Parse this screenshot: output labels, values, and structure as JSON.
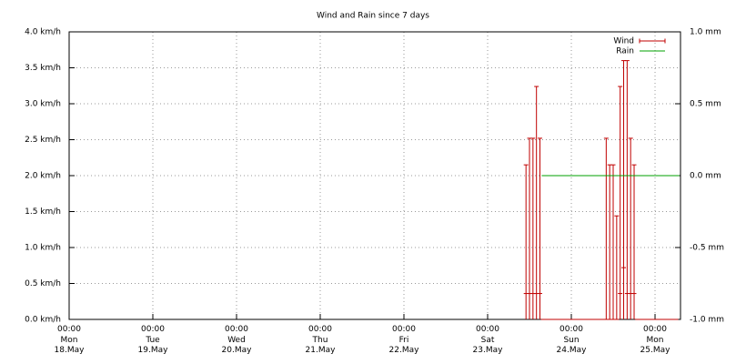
{
  "chart_data": {
    "type": "errorbar",
    "title": "Wind and Rain since 7 days",
    "xlim": [
      0,
      175.3
    ],
    "xticks": [
      {
        "value": 0,
        "label": "00:00\nMon\n18.May"
      },
      {
        "value": 24,
        "label": "00:00\nTue\n19.May"
      },
      {
        "value": 48,
        "label": "00:00\nWed\n20.May"
      },
      {
        "value": 72,
        "label": "00:00\nThu\n21.May"
      },
      {
        "value": 96,
        "label": "00:00\nFri\n22.May"
      },
      {
        "value": 120,
        "label": "00:00\nSat\n23.May"
      },
      {
        "value": 144,
        "label": "00:00\nSun\n24.May"
      },
      {
        "value": 168,
        "label": "00:00\nMon\n25.May"
      }
    ],
    "ylim": [
      0,
      4
    ],
    "yticks": [
      {
        "value": 0,
        "label": "0.0 km/h"
      },
      {
        "value": 0.5,
        "label": "0.5 km/h"
      },
      {
        "value": 1,
        "label": "1.0 km/h"
      },
      {
        "value": 1.5,
        "label": "1.5 km/h"
      },
      {
        "value": 2,
        "label": "2.0 km/h"
      },
      {
        "value": 2.5,
        "label": "2.5 km/h"
      },
      {
        "value": 3,
        "label": "3.0 km/h"
      },
      {
        "value": 3.5,
        "label": "3.5 km/h"
      },
      {
        "value": 4,
        "label": "4.0 km/h"
      }
    ],
    "y2lim": [
      -1,
      1
    ],
    "y2ticks": [
      {
        "value": -1,
        "label": "-1.0 mm"
      },
      {
        "value": -0.5,
        "label": "-0.5 mm"
      },
      {
        "value": 0,
        "label": "0.0 mm"
      },
      {
        "value": 0.5,
        "label": "0.5 mm"
      },
      {
        "value": 1,
        "label": "1.0 mm"
      }
    ],
    "grid": true,
    "legend": "top-right",
    "series": [
      {
        "name": "Wind",
        "color": "#c00000",
        "x": [
          131,
          132,
          133,
          134,
          135,
          136,
          137,
          138,
          139,
          140,
          141,
          142,
          143,
          144,
          145,
          146,
          147,
          148,
          149,
          150,
          151,
          152,
          153,
          154,
          155,
          156,
          157,
          158,
          159,
          160,
          161,
          162,
          163,
          164,
          165,
          166,
          167,
          168,
          169,
          170,
          171,
          172,
          173,
          174
        ],
        "values": [
          2.15,
          2.52,
          2.52,
          3.24,
          2.52,
          0,
          0,
          0,
          0,
          0,
          0,
          0,
          0,
          0,
          0,
          0,
          0,
          0,
          0,
          0,
          0,
          0,
          0,
          2.52,
          2.15,
          2.15,
          1.44,
          3.24,
          3.6,
          3.6,
          2.52,
          2.15,
          0,
          0,
          0,
          0,
          0,
          0,
          0,
          0,
          0,
          0,
          0,
          0
        ],
        "lows": [
          0.36,
          0.36,
          0.36,
          0.36,
          0.36,
          0,
          0,
          0,
          0,
          0,
          0,
          0,
          0,
          0,
          0,
          0,
          0,
          0,
          0,
          0,
          0,
          0,
          0,
          0,
          0,
          0,
          0,
          0.36,
          0.72,
          0.36,
          0.36,
          0.36,
          0,
          0,
          0,
          0,
          0,
          0,
          0,
          0,
          0,
          0,
          0,
          0
        ]
      },
      {
        "name": "Rain",
        "color": "#00a000",
        "axis": "y2",
        "x": [
          135.5,
          175
        ],
        "values": [
          0,
          0
        ]
      }
    ]
  }
}
